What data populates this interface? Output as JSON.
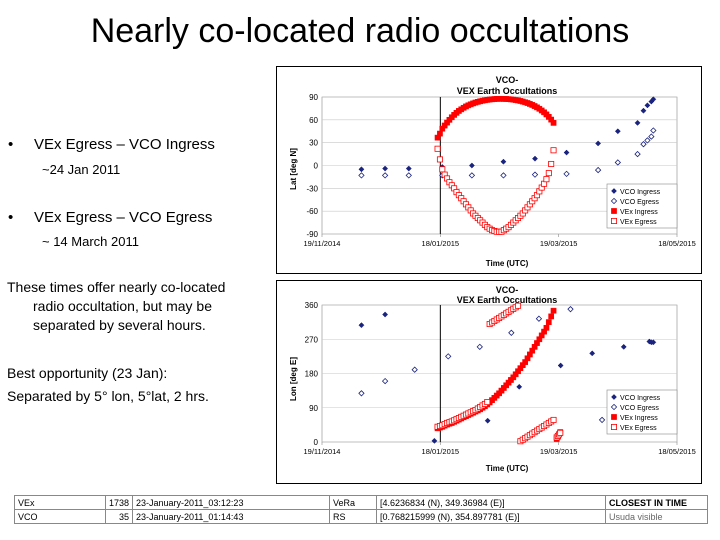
{
  "title": "Nearly co-located radio occultations",
  "bullets": [
    {
      "text": "VEx Egress – VCO Ingress",
      "sub": "~24 Jan 2011"
    },
    {
      "text": "VEx Egress – VCO Egress",
      "sub": "~ 14 March 2011"
    }
  ],
  "bullet_glyph": "•",
  "para1": [
    "These times offer nearly co-located",
    "radio occultation, but may be",
    "separated by several hours."
  ],
  "para2": [
    "Best opportunity (23 Jan):",
    "Separated by 5° lon, 5°lat, 2 hrs."
  ],
  "colors": {
    "vco": "#1a237e",
    "vex": "#ff0000",
    "grid": "#c8c8c8"
  },
  "chart_data": [
    {
      "type": "scatter",
      "title": "VCO-",
      "subtitle": "VEX Earth Occultations",
      "xlabel": "Time (UTC)",
      "ylabel": "Lat [deg N]",
      "xticks": [
        "19/11/2014",
        "18/01/2015",
        "19/03/2015",
        "18/05/2015"
      ],
      "xlim": [
        0,
        180
      ],
      "ylim": [
        -90,
        90
      ],
      "yticks": [
        -90,
        -60,
        -30,
        0,
        30,
        60,
        90
      ],
      "vline_x": 60,
      "grid": true,
      "legend_placement": "bottom-right",
      "series": [
        {
          "name": "VCO Ingress",
          "marker": "filled-diamond",
          "color": "#1a237e",
          "x": [
            20,
            32,
            44,
            61,
            76,
            92,
            108,
            124,
            140,
            150,
            160,
            163,
            165,
            167,
            168
          ],
          "y": [
            -5,
            -4,
            -4,
            -2,
            0,
            5,
            9,
            17,
            29,
            45,
            56,
            72,
            79,
            84,
            87
          ]
        },
        {
          "name": "VCO Egress",
          "marker": "open-diamond",
          "color": "#1a237e",
          "x": [
            20,
            32,
            44,
            61,
            76,
            92,
            108,
            124,
            140,
            150,
            160,
            163,
            165,
            167,
            168
          ],
          "y": [
            -13,
            -13,
            -13,
            -13,
            -13,
            -13,
            -12,
            -11,
            -6,
            4,
            15,
            28,
            33,
            38,
            46
          ]
        },
        {
          "name": "VEx Ingress",
          "marker": "filled-square",
          "color": "#ff0000",
          "x": [
            58.6,
            59.8,
            61.0,
            62.2,
            63.4,
            64.6,
            65.8,
            67.0,
            68.2,
            69.4,
            70.6,
            71.8,
            73.0,
            74.2,
            75.4,
            76.6,
            77.8,
            79.0,
            80.2,
            81.4,
            82.6,
            83.8,
            85.0,
            86.2,
            87.4,
            88.6,
            89.8,
            91.0,
            92.2,
            93.4,
            94.6,
            95.8,
            97.0,
            98.2,
            99.4,
            100.6,
            101.8,
            103.0,
            104.2,
            105.4,
            106.6,
            107.8,
            109.0,
            110.2,
            111.4,
            112.6,
            113.8,
            115.0,
            116.2,
            117.4
          ],
          "y": [
            36.6,
            41.9,
            48.4,
            52.5,
            56.4,
            60.0,
            63.4,
            66.5,
            69.2,
            71.7,
            73.8,
            75.8,
            77.6,
            79.1,
            80.4,
            81.6,
            82.7,
            83.6,
            84.4,
            85.1,
            85.7,
            86.2,
            86.7,
            87.0,
            87.3,
            87.5,
            87.6,
            87.6,
            87.5,
            87.4,
            87.2,
            86.9,
            86.5,
            86.0,
            85.5,
            84.8,
            84.0,
            83.1,
            82.1,
            80.9,
            79.6,
            78.1,
            76.4,
            74.5,
            72.3,
            69.9,
            67.1,
            63.9,
            60.3,
            56.0
          ]
        },
        {
          "name": "VEx Egress",
          "marker": "open-square",
          "color": "#ff0000",
          "x": [
            58.6,
            59.8,
            61.0,
            62.2,
            63.4,
            64.6,
            65.8,
            67.0,
            68.2,
            69.4,
            70.6,
            71.8,
            73.0,
            74.2,
            75.4,
            76.6,
            77.8,
            79.0,
            80.2,
            81.4,
            82.6,
            83.8,
            85.0,
            86.2,
            87.4,
            88.6,
            89.8,
            91.0,
            92.2,
            93.4,
            94.6,
            95.8,
            97.0,
            98.2,
            99.4,
            100.6,
            101.8,
            103.0,
            104.2,
            105.4,
            106.6,
            107.8,
            109.0,
            110.2,
            111.4,
            112.6,
            113.8,
            115.0,
            116.2,
            117.4
          ],
          "y": [
            22.0,
            8.0,
            -5.0,
            -12.0,
            -17.0,
            -22.0,
            -26.0,
            -30.0,
            -35.0,
            -39.0,
            -43.0,
            -47.0,
            -51.0,
            -55.0,
            -59.0,
            -63.0,
            -66.0,
            -69.0,
            -72.0,
            -75.0,
            -78.0,
            -81.0,
            -83.0,
            -85.0,
            -86.0,
            -87.0,
            -87.0,
            -87.0,
            -85.0,
            -83.0,
            -81.0,
            -78.0,
            -75.0,
            -72.0,
            -69.0,
            -66.0,
            -63.0,
            -59.0,
            -55.0,
            -51.0,
            -47.0,
            -43.0,
            -39.0,
            -34.0,
            -29.0,
            -24.0,
            -18.0,
            -10.0,
            2.0,
            20.0
          ]
        }
      ]
    },
    {
      "type": "scatter",
      "title": "VCO-",
      "subtitle": "VEX Earth Occultations",
      "xlabel": "Time (UTC)",
      "ylabel": "Lon [deg E]",
      "xticks": [
        "19/11/2014",
        "18/01/2015",
        "19/03/2015",
        "18/05/2015"
      ],
      "xlim": [
        0,
        180
      ],
      "ylim": [
        0,
        360
      ],
      "yticks": [
        0,
        90,
        180,
        270,
        360
      ],
      "vline_x": 60,
      "grid": true,
      "legend_placement": "bottom-right",
      "series": [
        {
          "name": "VCO Ingress",
          "marker": "filled-diamond",
          "color": "#1a237e",
          "x": [
            20,
            32,
            57,
            84,
            100,
            121,
            137,
            153,
            166,
            167,
            168,
            169,
            170
          ],
          "y": [
            307,
            335,
            3,
            56,
            145,
            201,
            233,
            250,
            264,
            262,
            262,
            121,
            104
          ]
        },
        {
          "name": "VCO Egress",
          "marker": "open-diamond",
          "color": "#1a237e",
          "x": [
            20,
            32,
            47,
            64,
            80,
            96,
            110,
            126,
            142,
            156,
            164,
            166,
            168,
            169,
            170
          ],
          "y": [
            128,
            160,
            190,
            225,
            250,
            287,
            324,
            349,
            58,
            72,
            89,
            92,
            95,
            96,
            100
          ]
        },
        {
          "name": "VEx Ingress",
          "marker": "filled-square",
          "color": "#ff0000",
          "x": [
            58.6,
            59.8,
            61.0,
            62.2,
            63.4,
            64.6,
            65.8,
            67.0,
            68.2,
            69.4,
            70.6,
            71.8,
            73.0,
            74.2,
            75.4,
            76.6,
            77.8,
            79.0,
            80.2,
            81.4,
            82.6,
            83.8,
            85.0,
            86.2,
            87.4,
            88.6,
            89.8,
            91.0,
            92.2,
            93.4,
            94.6,
            95.8,
            97.0,
            98.2,
            99.4,
            100.6,
            101.8,
            103.0,
            104.2,
            105.4,
            106.6,
            107.8,
            109.0,
            110.2,
            111.4,
            112.6,
            113.8,
            115.0,
            116.2,
            117.4,
            119.0,
            119.6,
            120.2,
            120.8
          ],
          "y": [
            36.0,
            38.0,
            40.0,
            43.0,
            46.0,
            48.0,
            50.0,
            53.0,
            56.0,
            59.0,
            62.0,
            65.0,
            68.0,
            71.0,
            74.0,
            77.0,
            80.0,
            83.0,
            86.0,
            90.0,
            94.0,
            99.0,
            104.0,
            110.0,
            116.0,
            122.0,
            128.0,
            135.0,
            142.0,
            149.0,
            156.0,
            163.0,
            170.0,
            178.0,
            186.0,
            194.0,
            202.0,
            210.0,
            220.0,
            230.0,
            240.0,
            250.0,
            260.0,
            270.0,
            280.0,
            290.0,
            300.0,
            315.0,
            330.0,
            345.0,
            8.0,
            14.0,
            20.0,
            26.0
          ]
        },
        {
          "name": "VEx Egress",
          "marker": "open-square",
          "color": "#ff0000",
          "x": [
            58.6,
            59.8,
            61.0,
            62.2,
            63.4,
            64.6,
            65.8,
            67.0,
            68.2,
            69.4,
            70.6,
            71.8,
            73.0,
            74.2,
            75.4,
            76.6,
            77.8,
            79.0,
            80.2,
            81.4,
            82.6,
            83.8,
            85.0,
            86.2,
            87.4,
            88.6,
            89.8,
            91.0,
            92.2,
            93.4,
            94.6,
            95.8,
            97.0,
            98.2,
            99.4,
            100.6,
            101.8,
            103.0,
            104.2,
            105.4,
            106.6,
            107.8,
            109.0,
            110.2,
            111.4,
            112.6,
            113.8,
            115.0,
            116.2,
            117.4,
            119.0,
            119.6,
            120.2,
            120.8
          ],
          "y": [
            40.0,
            42.0,
            44.0,
            47.0,
            50.0,
            52.0,
            54.0,
            57.0,
            60.0,
            63.0,
            66.0,
            69.0,
            72.0,
            75.0,
            78.0,
            81.0,
            84.0,
            88.0,
            92.0,
            96.0,
            100.0,
            105.0,
            310.0,
            314.0,
            318.0,
            322.0,
            326.0,
            330.0,
            334.0,
            338.0,
            342.0,
            346.0,
            350.0,
            354.0,
            358.0,
            2.0,
            6.0,
            10.0,
            14.0,
            18.0,
            22.0,
            26.0,
            30.0,
            34.0,
            38.0,
            42.0,
            46.0,
            50.0,
            54.0,
            58.0,
            12.0,
            16.0,
            20.0,
            24.0
          ]
        }
      ]
    }
  ],
  "table": {
    "rows": [
      [
        "VEx",
        "1738",
        "23-January-2011_03:12:23",
        "VeRa",
        "[4.6236834 (N), 349.36984 (E)]",
        "CLOSEST IN TIME"
      ],
      [
        "VCO",
        "35",
        "23-January-2011_01:14:43",
        "RS",
        "[0.768215999 (N), 354.897781 (E)]",
        "Usuda visible"
      ]
    ]
  }
}
